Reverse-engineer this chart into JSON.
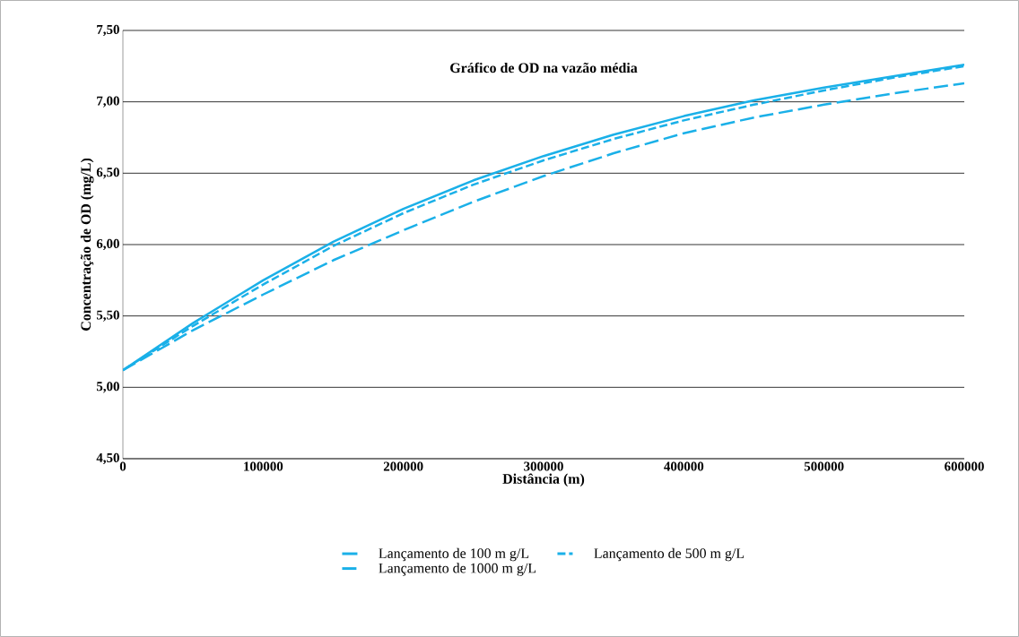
{
  "chart_data": {
    "type": "line",
    "title": "Gráfico  de  OD na vazão  média",
    "xlabel": "Distância (m)",
    "ylabel": "Concentração  de OD (mg/L)",
    "x": [
      0,
      50000,
      100000,
      150000,
      200000,
      250000,
      300000,
      350000,
      400000,
      450000,
      500000,
      550000,
      600000
    ],
    "series": [
      {
        "name": "Lançamento de 100 m g/L",
        "color": "#1ab0e8",
        "line_style": "solid",
        "values": [
          5.12,
          5.45,
          5.75,
          6.02,
          6.25,
          6.45,
          6.62,
          6.77,
          6.9,
          7.01,
          7.1,
          7.18,
          7.26
        ]
      },
      {
        "name": "Lançamento de 500 m g/L",
        "color": "#1ab0e8",
        "line_style": "dashed",
        "values": [
          5.12,
          5.43,
          5.72,
          5.99,
          6.22,
          6.42,
          6.59,
          6.74,
          6.87,
          6.98,
          7.08,
          7.17,
          7.25
        ]
      },
      {
        "name": "Lançamento de 1000 m g/L",
        "color": "#1ab0e8",
        "line_style": "dashed",
        "values": [
          5.12,
          5.4,
          5.65,
          5.89,
          6.1,
          6.3,
          6.48,
          6.64,
          6.78,
          6.89,
          6.98,
          7.06,
          7.13
        ]
      }
    ],
    "xlim": [
      0,
      600000
    ],
    "xticks": [
      0,
      100000,
      200000,
      300000,
      400000,
      500000,
      600000
    ],
    "ylim": [
      4.5,
      7.5
    ],
    "yticks": [
      {
        "value": 4.5,
        "label": "4,50"
      },
      {
        "value": 5.0,
        "label": "5,00"
      },
      {
        "value": 5.5,
        "label": "5,50"
      },
      {
        "value": 6.0,
        "label": "6,00"
      },
      {
        "value": 6.5,
        "label": "6,50"
      },
      {
        "value": 7.0,
        "label": "7,00"
      },
      {
        "value": 7.5,
        "label": "7,50"
      }
    ],
    "grid": "y",
    "legend": "bottom",
    "marker": "none"
  }
}
